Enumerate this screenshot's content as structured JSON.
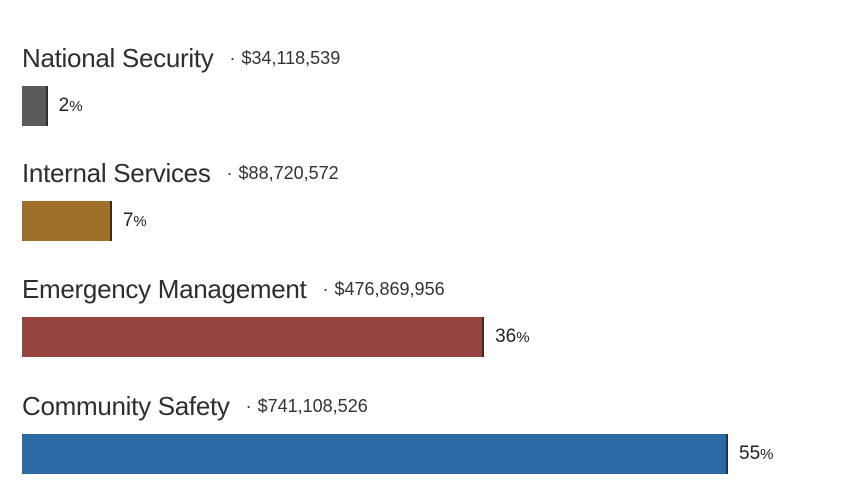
{
  "chart_data": {
    "type": "bar",
    "orientation": "horizontal",
    "xlim": [
      0,
      100
    ],
    "categories": [
      "National Security",
      "Internal Services",
      "Emergency Management",
      "Community Safety"
    ],
    "values": [
      2,
      7,
      36,
      55
    ],
    "amounts": [
      "$34,118,539",
      "$88,720,572",
      "$476,869,956",
      "$741,108,526"
    ],
    "value_labels": [
      "2",
      "7",
      "36",
      "55"
    ],
    "percent_symbol": "%",
    "separator": "·",
    "colors": [
      "#5a5a5a",
      "#a0702b",
      "#954440",
      "#2a6aa5"
    ],
    "grid": false,
    "legend": "none"
  }
}
